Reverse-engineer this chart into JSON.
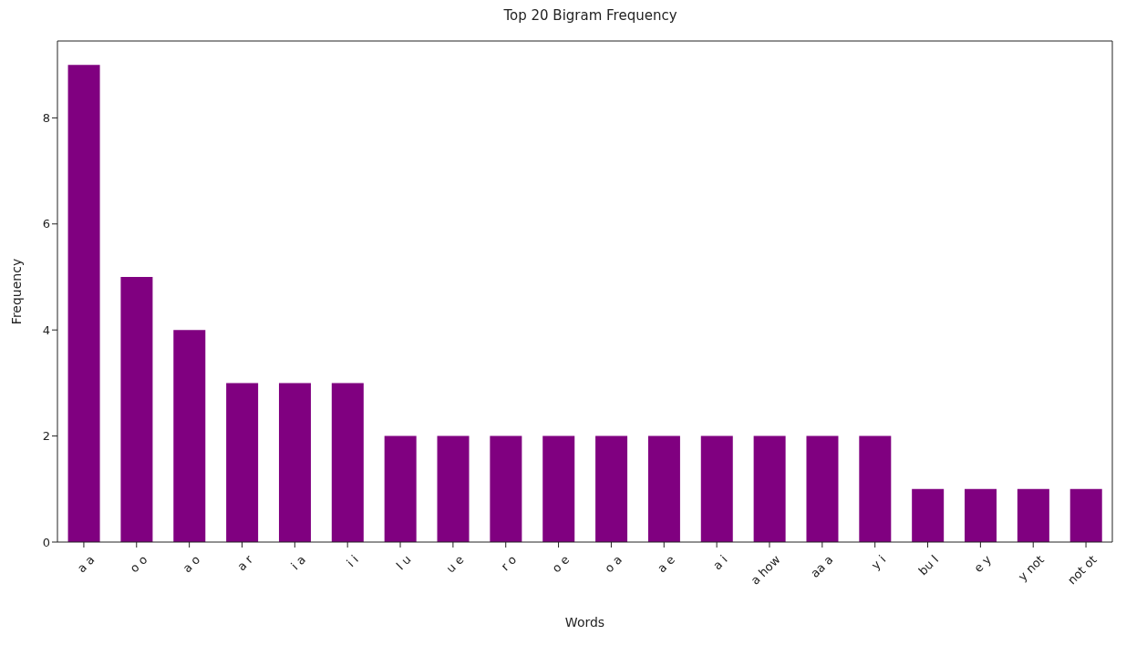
{
  "chart_data": {
    "type": "bar",
    "title": "Top 20 Bigram Frequency",
    "xlabel": "Words",
    "ylabel": "Frequency",
    "categories": [
      "a a",
      "o o",
      "a o",
      "a r",
      "i a",
      "i i",
      "l u",
      "u e",
      "r o",
      "o e",
      "o a",
      "a e",
      "a i",
      "a how",
      "aa a",
      "y i",
      "bu l",
      "e y",
      "y not",
      "not ot"
    ],
    "values": [
      9,
      5,
      4,
      3,
      3,
      3,
      2,
      2,
      2,
      2,
      2,
      2,
      2,
      2,
      2,
      2,
      1,
      1,
      1,
      1
    ],
    "color": "#800080",
    "ylim": [
      0,
      9.45
    ],
    "yticks": [
      0,
      2,
      4,
      6,
      8
    ],
    "grid": false,
    "legend": false
  }
}
